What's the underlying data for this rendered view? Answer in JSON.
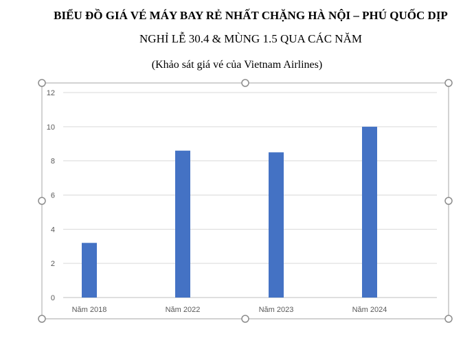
{
  "chart_data": {
    "type": "bar",
    "title_line1": "BIỂU ĐỒ GIÁ VÉ MÁY BAY RẺ NHẤT CHẶNG HÀ NỘI – PHÚ QUỐC DỊP",
    "title_line2": "NGHỈ LỄ 30.4 & MÙNG 1.5 QUA CÁC NĂM",
    "subtitle": "(Khảo sát giá vé của Vietnam Airlines)",
    "categories": [
      "Năm 2018",
      "Năm 2022",
      "Năm 2023",
      "Năm 2024"
    ],
    "values": [
      3.2,
      8.6,
      8.5,
      10
    ],
    "ylim": [
      0,
      12
    ],
    "yticks": [
      0,
      2,
      4,
      6,
      8,
      10,
      12
    ],
    "grid": true,
    "bar_color": "#4472c4",
    "grid_color": "#d9d9d9",
    "frame_color": "#a6a6a6",
    "handle_color": "#8c8c8c"
  }
}
